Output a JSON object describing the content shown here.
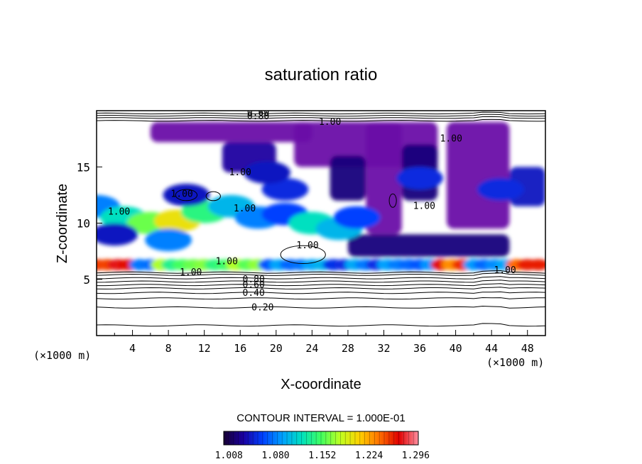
{
  "chart_data": {
    "type": "heatmap",
    "title": "saturation ratio",
    "xlabel": "X-coordinate",
    "ylabel": "Z-coordinate",
    "x_unit": "(×1000 m)",
    "z_unit": "(×1000 m)",
    "xlim": [
      0,
      50
    ],
    "ylim": [
      0,
      20
    ],
    "x_ticks": [
      "4",
      "8",
      "12",
      "16",
      "20",
      "24",
      "28",
      "32",
      "36",
      "40",
      "44",
      "48"
    ],
    "y_ticks": [
      "5",
      "10",
      "15"
    ],
    "contour_interval_text": "CONTOUR INTERVAL = 1.000E-01",
    "colorbar": {
      "tick_labels": [
        "1.008",
        "1.080",
        "1.152",
        "1.224",
        "1.296"
      ],
      "range": [
        1.0,
        1.3
      ],
      "colors": [
        "#170033",
        "#1a00a0",
        "#0040ff",
        "#00a0ff",
        "#00e0c0",
        "#40ff60",
        "#c0ff20",
        "#ffd000",
        "#ff7000",
        "#e00000",
        "#ff90a0"
      ]
    },
    "contour_labels": [
      {
        "text": "0.20",
        "x": 18.5,
        "z": 2.5
      },
      {
        "text": "0.40",
        "x": 17.5,
        "z": 3.8
      },
      {
        "text": "0.60",
        "x": 17.5,
        "z": 4.5
      },
      {
        "text": "0.80",
        "x": 17.5,
        "z": 5.0
      },
      {
        "text": "1.00",
        "x": 10.5,
        "z": 5.6
      },
      {
        "text": "1.00",
        "x": 14.5,
        "z": 6.6
      },
      {
        "text": "1.00",
        "x": 45.5,
        "z": 5.8
      },
      {
        "text": "1.00",
        "x": 23.5,
        "z": 8.0
      },
      {
        "text": "1.00",
        "x": 16.5,
        "z": 11.3
      },
      {
        "text": "1.00",
        "x": 9.5,
        "z": 12.6
      },
      {
        "text": "1.00",
        "x": 2.5,
        "z": 11.0
      },
      {
        "text": "1.00",
        "x": 16.0,
        "z": 14.5
      },
      {
        "text": "1.00",
        "x": 36.5,
        "z": 11.5
      },
      {
        "text": "1.00",
        "x": 39.5,
        "z": 17.5
      },
      {
        "text": "1.00",
        "x": 26.0,
        "z": 19.0
      },
      {
        "text": "0.80",
        "x": 18.0,
        "z": 19.5
      },
      {
        "text": "0.60",
        "x": 18.0,
        "z": 19.8
      }
    ],
    "regions": [
      {
        "kind": "supersat_high_layer",
        "z_range": [
          15.5,
          19.0
        ],
        "x_range": [
          6,
          50
        ],
        "value_range": [
          1.0,
          1.05
        ]
      },
      {
        "kind": "supersat_mid_band",
        "z_range": [
          9,
          13
        ],
        "x_range": [
          0,
          30
        ],
        "value_range": [
          1.0,
          1.2
        ]
      },
      {
        "kind": "supersat_low_band",
        "z_range": [
          5.8,
          7.2
        ],
        "x_range": [
          0,
          50
        ],
        "value_range": [
          1.0,
          1.3
        ]
      },
      {
        "kind": "subsaturated_lower_layer",
        "z_range": [
          0,
          5.5
        ],
        "x_range": [
          0,
          50
        ],
        "value_range": [
          0.0,
          1.0
        ]
      }
    ]
  }
}
